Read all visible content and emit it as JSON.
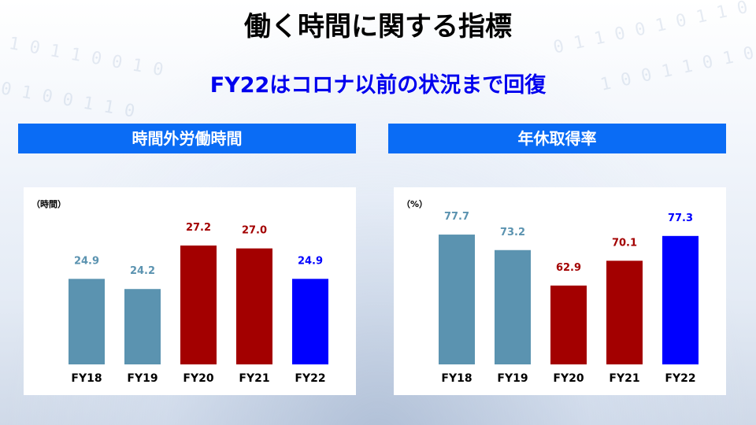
{
  "title": "働く時間に関する指標",
  "subtitle": "FY22はコロナ以前の状況まで回復",
  "colors": {
    "pre": "#5b93b0",
    "covid": "#a30000",
    "current": "#0000ff",
    "header": "#0a6cf5"
  },
  "chart_data": [
    {
      "type": "bar",
      "title": "時間外労働時間",
      "ylabel": "（時間）",
      "categories": [
        "FY18",
        "FY19",
        "FY20",
        "FY21",
        "FY22"
      ],
      "values": [
        24.9,
        24.2,
        27.2,
        27.0,
        24.9
      ],
      "value_labels": [
        "24.9",
        "24.2",
        "27.2",
        "27.0",
        "24.9"
      ],
      "bar_colors": [
        "#5b93b0",
        "#5b93b0",
        "#a30000",
        "#a30000",
        "#0000ff"
      ],
      "ylim": [
        19,
        28.5
      ],
      "grid": false
    },
    {
      "type": "bar",
      "title": "年休取得率",
      "ylabel": "（%）",
      "categories": [
        "FY18",
        "FY19",
        "FY20",
        "FY21",
        "FY22"
      ],
      "values": [
        77.7,
        73.2,
        62.9,
        70.1,
        77.3
      ],
      "value_labels": [
        "77.7",
        "73.2",
        "62.9",
        "70.1",
        "77.3"
      ],
      "bar_colors": [
        "#5b93b0",
        "#5b93b0",
        "#a30000",
        "#a30000",
        "#0000ff"
      ],
      "ylim": [
        40,
        80
      ],
      "grid": false
    }
  ]
}
